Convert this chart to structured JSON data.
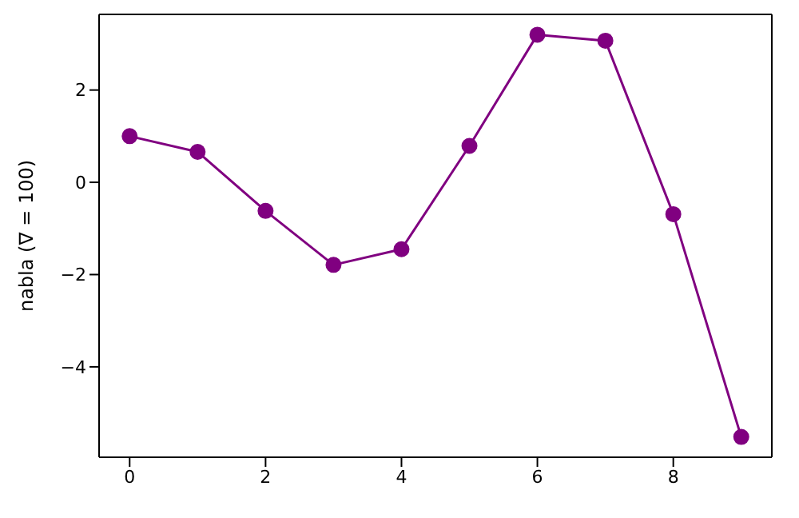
{
  "chart_data": {
    "type": "line",
    "ylabel": "nabla (∇ = 100)",
    "x": [
      0,
      1,
      2,
      3,
      4,
      5,
      6,
      7,
      8,
      9
    ],
    "series": [
      {
        "color": "#800080",
        "values": [
          1.0,
          0.66,
          -0.62,
          -1.79,
          -1.45,
          0.79,
          3.2,
          3.07,
          -0.69,
          -5.52
        ]
      }
    ],
    "xlim": [
      -0.45,
      9.45
    ],
    "xticks": [
      0,
      2,
      4,
      6,
      8
    ],
    "ylim": [
      -5.96,
      3.64
    ],
    "yticks": [
      -4,
      -2,
      0,
      2
    ],
    "grid": false,
    "legend": false,
    "marker": "circle",
    "line_style": "solid"
  }
}
